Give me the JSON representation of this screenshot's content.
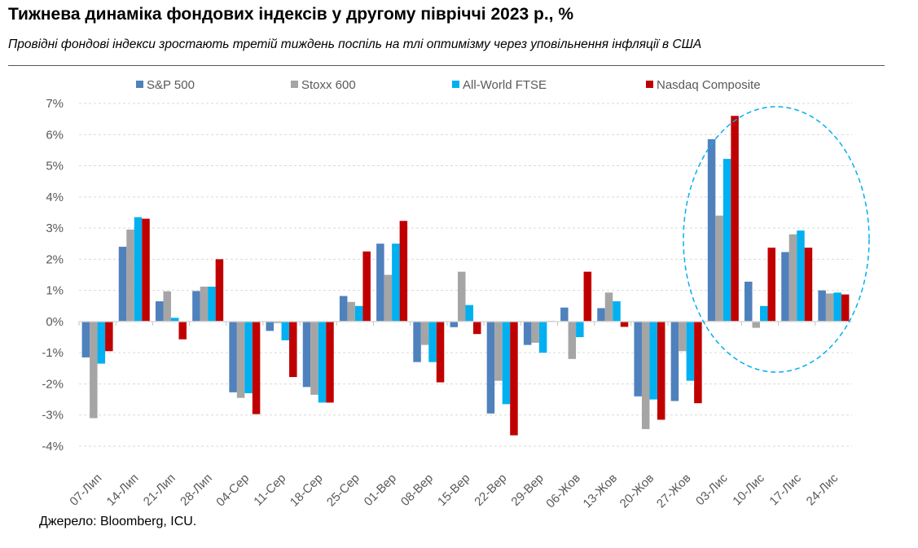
{
  "title": "Тижнева динаміка фондових індексів у другому півріччі 2023 р., %",
  "subtitle": "Провідні фондові індекси зростають третій тиждень поспіль на тлі оптимізму через уповільнення інфляції в США",
  "source": "Джерело: Bloomberg, ICU.",
  "chart_data": {
    "type": "bar",
    "title": "Тижнева динаміка фондових індексів у другому півріччі 2023 р., %",
    "ylim": [
      -4,
      7
    ],
    "yticks": [
      "-4%",
      "-3%",
      "-2%",
      "-1%",
      "0%",
      "1%",
      "2%",
      "3%",
      "4%",
      "5%",
      "6%",
      "7%"
    ],
    "grid": true,
    "legend_position": "top",
    "highlight": {
      "shape": "dashed-ellipse",
      "color": "#00B0F0",
      "categories": [
        "03-Лис",
        "10-Лис",
        "17-Лис",
        "24-Лис"
      ]
    },
    "categories": [
      "07-Лип",
      "14-Лип",
      "21-Лип",
      "28-Лип",
      "04-Сер",
      "11-Сер",
      "18-Сер",
      "25-Сер",
      "01-Вер",
      "08-Вер",
      "15-Вер",
      "22-Вер",
      "29-Вер",
      "06-Жов",
      "13-Жов",
      "20-Жов",
      "27-Жов",
      "03-Лис",
      "10-Лис",
      "17-Лис",
      "24-Лис"
    ],
    "series": [
      {
        "name": "S&P 500",
        "color": "#4F81BD",
        "values": [
          -1.15,
          2.4,
          0.65,
          0.98,
          -2.27,
          -0.3,
          -2.1,
          0.82,
          2.5,
          -1.3,
          -0.18,
          -2.95,
          -0.75,
          0.45,
          0.43,
          -2.4,
          -2.55,
          5.85,
          1.28,
          2.23,
          1.0
        ]
      },
      {
        "name": "Stoxx 600",
        "color": "#A5A5A5",
        "values": [
          -3.1,
          2.95,
          0.97,
          1.12,
          -2.45,
          -0.05,
          -2.35,
          0.63,
          1.5,
          -0.75,
          1.6,
          -1.9,
          -0.68,
          -1.2,
          0.93,
          -3.45,
          -0.95,
          3.4,
          -0.2,
          2.8,
          0.9
        ]
      },
      {
        "name": "All-World FTSE",
        "color": "#00B0F0",
        "values": [
          -1.35,
          3.35,
          0.12,
          1.12,
          -2.3,
          -0.6,
          -2.6,
          0.5,
          2.5,
          -1.3,
          0.53,
          -2.65,
          -1.0,
          -0.5,
          0.65,
          -2.5,
          -1.9,
          5.22,
          0.5,
          2.92,
          0.93
        ]
      },
      {
        "name": "Nasdaq Composite",
        "color": "#C00000",
        "values": [
          -0.95,
          3.3,
          -0.57,
          2.0,
          -2.97,
          -1.78,
          -2.6,
          2.25,
          3.23,
          -1.95,
          -0.4,
          -3.65,
          0.02,
          1.6,
          -0.17,
          -3.15,
          -2.62,
          6.6,
          2.37,
          2.37,
          0.87
        ]
      }
    ]
  }
}
